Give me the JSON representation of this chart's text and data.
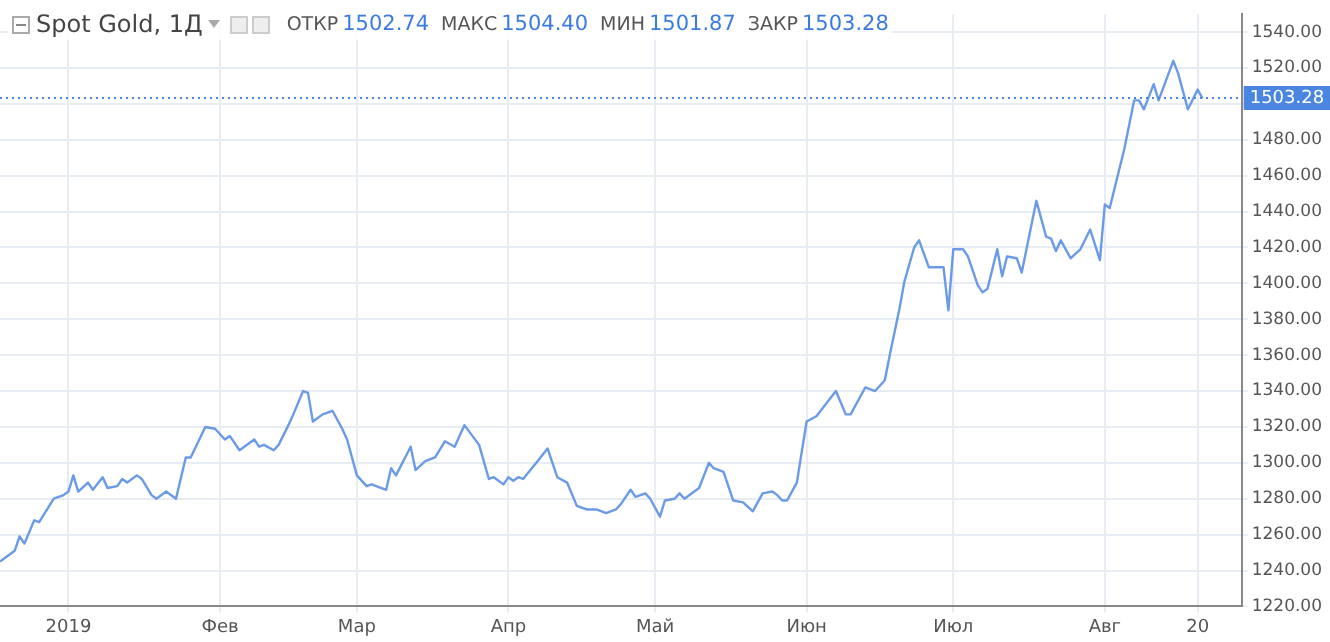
{
  "chart_data": {
    "type": "line",
    "title": "Spot Gold, 1Д",
    "annotations": [
      "ОТКР 1502.74",
      "МАКС 1504.40",
      "МИН 1501.87",
      "ЗАКР 1503.28"
    ],
    "x": [
      "2018-12-18",
      "2018-12-21",
      "2018-12-22",
      "2018-12-23",
      "2018-12-25",
      "2018-12-26",
      "2018-12-29",
      "2018-12-31",
      "2019-01-01",
      "2019-01-02",
      "2019-01-03",
      "2019-01-05",
      "2019-01-06",
      "2019-01-08",
      "2019-01-09",
      "2019-01-11",
      "2019-01-12",
      "2019-01-13",
      "2019-01-15",
      "2019-01-16",
      "2019-01-18",
      "2019-01-19",
      "2019-01-21",
      "2019-01-23",
      "2019-01-25",
      "2019-01-26",
      "2019-01-29",
      "2019-01-31",
      "2019-02-02",
      "2019-02-03",
      "2019-02-05",
      "2019-02-08",
      "2019-02-09",
      "2019-02-10",
      "2019-02-12",
      "2019-02-13",
      "2019-02-15",
      "2019-02-16",
      "2019-02-18",
      "2019-02-19",
      "2019-02-20",
      "2019-02-22",
      "2019-02-24",
      "2019-02-26",
      "2019-02-27",
      "2019-03-01",
      "2019-03-03",
      "2019-03-04",
      "2019-03-07",
      "2019-03-08",
      "2019-03-09",
      "2019-03-12",
      "2019-03-13",
      "2019-03-15",
      "2019-03-17",
      "2019-03-19",
      "2019-03-21",
      "2019-03-23",
      "2019-03-26",
      "2019-03-28",
      "2019-03-29",
      "2019-03-31",
      "2019-04-01",
      "2019-04-02",
      "2019-04-03",
      "2019-04-04",
      "2019-04-07",
      "2019-04-09",
      "2019-04-11",
      "2019-04-13",
      "2019-04-15",
      "2019-04-17",
      "2019-04-19",
      "2019-04-21",
      "2019-04-23",
      "2019-04-24",
      "2019-04-26",
      "2019-04-27",
      "2019-04-29",
      "2019-04-30",
      "2019-05-02",
      "2019-05-03",
      "2019-05-05",
      "2019-05-06",
      "2019-05-07",
      "2019-05-10",
      "2019-05-12",
      "2019-05-13",
      "2019-05-15",
      "2019-05-17",
      "2019-05-19",
      "2019-05-21",
      "2019-05-23",
      "2019-05-25",
      "2019-05-26",
      "2019-05-27",
      "2019-05-28",
      "2019-05-30",
      "2019-06-01",
      "2019-06-03",
      "2019-06-07",
      "2019-06-09",
      "2019-06-10",
      "2019-06-13",
      "2019-06-15",
      "2019-06-17",
      "2019-06-18",
      "2019-06-20",
      "2019-06-21",
      "2019-06-23",
      "2019-06-24",
      "2019-06-26",
      "2019-06-29",
      "2019-06-30",
      "2019-07-01",
      "2019-07-03",
      "2019-07-04",
      "2019-07-06",
      "2019-07-07",
      "2019-07-08",
      "2019-07-10",
      "2019-07-11",
      "2019-07-12",
      "2019-07-14",
      "2019-07-15",
      "2019-07-18",
      "2019-07-20",
      "2019-07-21",
      "2019-07-22",
      "2019-07-23",
      "2019-07-25",
      "2019-07-27",
      "2019-07-29",
      "2019-07-31",
      "2019-08-01",
      "2019-08-02",
      "2019-08-04",
      "2019-08-05",
      "2019-08-07",
      "2019-08-08",
      "2019-08-09",
      "2019-08-11",
      "2019-08-12",
      "2019-08-15",
      "2019-08-16",
      "2019-08-18",
      "2019-08-20",
      "2019-08-21"
    ],
    "series": [
      {
        "color": "#6b9ae6",
        "values": [
          1245,
          1251,
          1259,
          1255,
          1268,
          1267,
          1280,
          1282,
          1284,
          1293,
          1284,
          1289,
          1285,
          1292,
          1286,
          1287,
          1291,
          1289,
          1293,
          1291,
          1282,
          1280,
          1284,
          1280,
          1303,
          1303,
          1320,
          1319,
          1313,
          1315,
          1307,
          1313,
          1309,
          1310,
          1307,
          1310,
          1321,
          1327,
          1340,
          1339,
          1323,
          1327,
          1329,
          1319,
          1313,
          1293,
          1287,
          1288,
          1285,
          1297,
          1293,
          1309,
          1296,
          1301,
          1303,
          1312,
          1309,
          1321,
          1310,
          1291,
          1292,
          1288,
          1292,
          1290,
          1292,
          1291,
          1301,
          1308,
          1292,
          1289,
          1276,
          1274,
          1274,
          1272,
          1274,
          1277,
          1285,
          1281,
          1283,
          1280,
          1270,
          1279,
          1280,
          1283,
          1280,
          1286,
          1300,
          1297,
          1295,
          1279,
          1278,
          1273,
          1283,
          1284,
          1282,
          1279,
          1279,
          1289,
          1323,
          1326,
          1340,
          1327,
          1327,
          1342,
          1340,
          1346,
          1360,
          1386,
          1401,
          1420,
          1424,
          1409,
          1409,
          1385,
          1419,
          1419,
          1415,
          1399,
          1395,
          1397,
          1419,
          1404,
          1415,
          1414,
          1406,
          1446,
          1426,
          1425,
          1418,
          1424,
          1414,
          1419,
          1430,
          1413,
          1444,
          1442,
          1464,
          1475,
          1502,
          1502,
          1497,
          1511,
          1502,
          1524,
          1517,
          1497,
          1508,
          1503
        ]
      }
    ],
    "xlim": [
      "2018-12-18",
      "2019-08-29"
    ],
    "xticks": [
      {
        "value": "2019-01-01",
        "label": "2019"
      },
      {
        "value": "2019-02-01",
        "label": "Фев"
      },
      {
        "value": "2019-03-01",
        "label": "Мар"
      },
      {
        "value": "2019-04-01",
        "label": "Апр"
      },
      {
        "value": "2019-05-01",
        "label": "Май"
      },
      {
        "value": "2019-06-01",
        "label": "Июн"
      },
      {
        "value": "2019-07-01",
        "label": "Июл"
      },
      {
        "value": "2019-08-01",
        "label": "Авг"
      },
      {
        "value": "2019-08-20",
        "label": "20"
      }
    ],
    "ylim": [
      1220,
      1550
    ],
    "yticks": [
      {
        "value": 1220,
        "label": "1220.00"
      },
      {
        "value": 1240,
        "label": "1240.00"
      },
      {
        "value": 1260,
        "label": "1260.00"
      },
      {
        "value": 1280,
        "label": "1280.00"
      },
      {
        "value": 1300,
        "label": "1300.00"
      },
      {
        "value": 1320,
        "label": "1320.00"
      },
      {
        "value": 1340,
        "label": "1340.00"
      },
      {
        "value": 1360,
        "label": "1360.00"
      },
      {
        "value": 1380,
        "label": "1380.00"
      },
      {
        "value": 1400,
        "label": "1400.00"
      },
      {
        "value": 1420,
        "label": "1420.00"
      },
      {
        "value": 1440,
        "label": "1440.00"
      },
      {
        "value": 1460,
        "label": "1460.00"
      },
      {
        "value": 1480,
        "label": "1480.00"
      },
      {
        "value": 1500,
        "label": null
      },
      {
        "value": 1520,
        "label": "1520.00"
      },
      {
        "value": 1540,
        "label": "1540.00"
      }
    ],
    "ref_lines": [
      {
        "axis": "y",
        "value": 1503.28,
        "label": "1503.28",
        "color": "#4a86e0",
        "line_style": "dotted"
      }
    ],
    "grid": true,
    "marker": "none",
    "line_style": "solid",
    "legend": false
  }
}
